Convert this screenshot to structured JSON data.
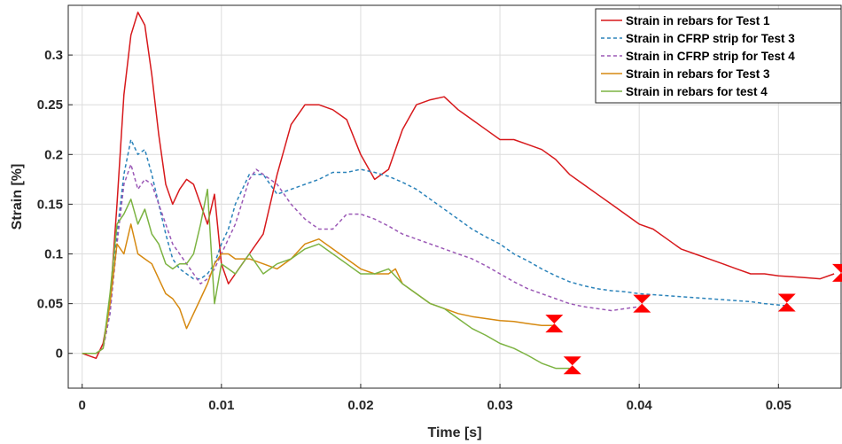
{
  "chart_data": {
    "type": "line",
    "xlabel": "Time [s]",
    "ylabel": "Strain [%]",
    "xlim": [
      -0.001,
      0.0545
    ],
    "ylim": [
      -0.035,
      0.35
    ],
    "xticks": [
      0,
      0.01,
      0.02,
      0.03,
      0.04,
      0.05
    ],
    "xtick_labels": [
      "0",
      "0.01",
      "0.02",
      "0.03",
      "0.04",
      "0.05"
    ],
    "yticks": [
      0,
      0.05,
      0.1,
      0.15,
      0.2,
      0.25,
      0.3
    ],
    "ytick_labels": [
      "0",
      "0.05",
      "0.1",
      "0.15",
      "0.2",
      "0.25",
      "0.3"
    ],
    "grid": true,
    "legend_position": "top-right",
    "series": [
      {
        "name": "Strain in rebars for Test 1",
        "color": "#d7191c",
        "style": "solid",
        "points": [
          [
            0,
            0
          ],
          [
            0.001,
            -0.005
          ],
          [
            0.0015,
            0.01
          ],
          [
            0.002,
            0.05
          ],
          [
            0.0025,
            0.15
          ],
          [
            0.003,
            0.26
          ],
          [
            0.0035,
            0.32
          ],
          [
            0.004,
            0.343
          ],
          [
            0.0045,
            0.33
          ],
          [
            0.005,
            0.28
          ],
          [
            0.0055,
            0.22
          ],
          [
            0.006,
            0.17
          ],
          [
            0.0065,
            0.15
          ],
          [
            0.007,
            0.165
          ],
          [
            0.0075,
            0.175
          ],
          [
            0.008,
            0.17
          ],
          [
            0.0085,
            0.15
          ],
          [
            0.009,
            0.13
          ],
          [
            0.0095,
            0.16
          ],
          [
            0.01,
            0.09
          ],
          [
            0.0105,
            0.07
          ],
          [
            0.011,
            0.08
          ],
          [
            0.0115,
            0.09
          ],
          [
            0.012,
            0.1
          ],
          [
            0.013,
            0.12
          ],
          [
            0.014,
            0.18
          ],
          [
            0.015,
            0.23
          ],
          [
            0.016,
            0.25
          ],
          [
            0.017,
            0.25
          ],
          [
            0.018,
            0.245
          ],
          [
            0.019,
            0.235
          ],
          [
            0.02,
            0.2
          ],
          [
            0.021,
            0.175
          ],
          [
            0.022,
            0.185
          ],
          [
            0.023,
            0.225
          ],
          [
            0.024,
            0.25
          ],
          [
            0.025,
            0.255
          ],
          [
            0.026,
            0.258
          ],
          [
            0.027,
            0.245
          ],
          [
            0.028,
            0.235
          ],
          [
            0.029,
            0.225
          ],
          [
            0.03,
            0.215
          ],
          [
            0.031,
            0.215
          ],
          [
            0.032,
            0.21
          ],
          [
            0.033,
            0.205
          ],
          [
            0.034,
            0.195
          ],
          [
            0.035,
            0.18
          ],
          [
            0.036,
            0.17
          ],
          [
            0.037,
            0.16
          ],
          [
            0.038,
            0.15
          ],
          [
            0.039,
            0.14
          ],
          [
            0.04,
            0.13
          ],
          [
            0.041,
            0.125
          ],
          [
            0.042,
            0.115
          ],
          [
            0.043,
            0.105
          ],
          [
            0.044,
            0.1
          ],
          [
            0.045,
            0.095
          ],
          [
            0.046,
            0.09
          ],
          [
            0.047,
            0.085
          ],
          [
            0.048,
            0.08
          ],
          [
            0.049,
            0.08
          ],
          [
            0.05,
            0.078
          ],
          [
            0.051,
            0.077
          ],
          [
            0.052,
            0.076
          ],
          [
            0.053,
            0.075
          ],
          [
            0.054,
            0.08
          ]
        ]
      },
      {
        "name": "Strain in CFRP strip for Test 3",
        "color": "#2b83ba",
        "style": "dashed",
        "points": [
          [
            0,
            0
          ],
          [
            0.001,
            0
          ],
          [
            0.0015,
            0.005
          ],
          [
            0.002,
            0.04
          ],
          [
            0.0025,
            0.12
          ],
          [
            0.003,
            0.18
          ],
          [
            0.0035,
            0.215
          ],
          [
            0.004,
            0.2
          ],
          [
            0.0045,
            0.205
          ],
          [
            0.005,
            0.18
          ],
          [
            0.0055,
            0.15
          ],
          [
            0.006,
            0.12
          ],
          [
            0.0065,
            0.095
          ],
          [
            0.007,
            0.085
          ],
          [
            0.0075,
            0.08
          ],
          [
            0.008,
            0.075
          ],
          [
            0.0085,
            0.075
          ],
          [
            0.009,
            0.08
          ],
          [
            0.0095,
            0.09
          ],
          [
            0.01,
            0.11
          ],
          [
            0.0105,
            0.125
          ],
          [
            0.011,
            0.15
          ],
          [
            0.0115,
            0.165
          ],
          [
            0.012,
            0.18
          ],
          [
            0.013,
            0.18
          ],
          [
            0.0135,
            0.17
          ],
          [
            0.014,
            0.16
          ],
          [
            0.015,
            0.165
          ],
          [
            0.016,
            0.17
          ],
          [
            0.017,
            0.175
          ],
          [
            0.018,
            0.182
          ],
          [
            0.019,
            0.182
          ],
          [
            0.02,
            0.185
          ],
          [
            0.021,
            0.182
          ],
          [
            0.022,
            0.178
          ],
          [
            0.023,
            0.172
          ],
          [
            0.024,
            0.165
          ],
          [
            0.025,
            0.155
          ],
          [
            0.026,
            0.145
          ],
          [
            0.027,
            0.135
          ],
          [
            0.028,
            0.125
          ],
          [
            0.029,
            0.117
          ],
          [
            0.03,
            0.11
          ],
          [
            0.031,
            0.1
          ],
          [
            0.032,
            0.093
          ],
          [
            0.033,
            0.085
          ],
          [
            0.034,
            0.078
          ],
          [
            0.035,
            0.072
          ],
          [
            0.036,
            0.068
          ],
          [
            0.037,
            0.065
          ],
          [
            0.038,
            0.063
          ],
          [
            0.039,
            0.062
          ],
          [
            0.04,
            0.06
          ],
          [
            0.041,
            0.059
          ],
          [
            0.042,
            0.058
          ],
          [
            0.043,
            0.057
          ],
          [
            0.044,
            0.056
          ],
          [
            0.045,
            0.055
          ],
          [
            0.046,
            0.054
          ],
          [
            0.047,
            0.053
          ],
          [
            0.048,
            0.052
          ],
          [
            0.049,
            0.05
          ],
          [
            0.0505,
            0.048
          ]
        ]
      },
      {
        "name": "Strain in CFRP strip for Test 4",
        "color": "#9b59b6",
        "style": "dashed",
        "points": [
          [
            0,
            0
          ],
          [
            0.001,
            0
          ],
          [
            0.0015,
            0.005
          ],
          [
            0.002,
            0.04
          ],
          [
            0.0025,
            0.11
          ],
          [
            0.003,
            0.17
          ],
          [
            0.0035,
            0.19
          ],
          [
            0.004,
            0.165
          ],
          [
            0.0045,
            0.175
          ],
          [
            0.005,
            0.17
          ],
          [
            0.0055,
            0.15
          ],
          [
            0.006,
            0.13
          ],
          [
            0.0065,
            0.11
          ],
          [
            0.007,
            0.1
          ],
          [
            0.0075,
            0.09
          ],
          [
            0.008,
            0.08
          ],
          [
            0.0085,
            0.07
          ],
          [
            0.009,
            0.075
          ],
          [
            0.0095,
            0.085
          ],
          [
            0.01,
            0.1
          ],
          [
            0.011,
            0.13
          ],
          [
            0.012,
            0.175
          ],
          [
            0.0125,
            0.185
          ],
          [
            0.013,
            0.18
          ],
          [
            0.014,
            0.17
          ],
          [
            0.015,
            0.15
          ],
          [
            0.016,
            0.135
          ],
          [
            0.017,
            0.125
          ],
          [
            0.018,
            0.125
          ],
          [
            0.019,
            0.14
          ],
          [
            0.02,
            0.14
          ],
          [
            0.021,
            0.135
          ],
          [
            0.022,
            0.128
          ],
          [
            0.023,
            0.12
          ],
          [
            0.024,
            0.115
          ],
          [
            0.025,
            0.11
          ],
          [
            0.026,
            0.105
          ],
          [
            0.027,
            0.1
          ],
          [
            0.028,
            0.095
          ],
          [
            0.029,
            0.088
          ],
          [
            0.03,
            0.08
          ],
          [
            0.031,
            0.072
          ],
          [
            0.032,
            0.065
          ],
          [
            0.033,
            0.06
          ],
          [
            0.034,
            0.055
          ],
          [
            0.035,
            0.05
          ],
          [
            0.036,
            0.047
          ],
          [
            0.037,
            0.045
          ],
          [
            0.038,
            0.043
          ],
          [
            0.039,
            0.045
          ],
          [
            0.04,
            0.047
          ]
        ]
      },
      {
        "name": "Strain in rebars for Test 3",
        "color": "#d68910",
        "style": "solid",
        "points": [
          [
            0,
            0
          ],
          [
            0.001,
            0
          ],
          [
            0.0015,
            0.005
          ],
          [
            0.002,
            0.05
          ],
          [
            0.0025,
            0.11
          ],
          [
            0.003,
            0.1
          ],
          [
            0.0035,
            0.13
          ],
          [
            0.004,
            0.1
          ],
          [
            0.0045,
            0.095
          ],
          [
            0.005,
            0.09
          ],
          [
            0.0055,
            0.075
          ],
          [
            0.006,
            0.06
          ],
          [
            0.0065,
            0.055
          ],
          [
            0.007,
            0.045
          ],
          [
            0.0075,
            0.025
          ],
          [
            0.008,
            0.04
          ],
          [
            0.0085,
            0.055
          ],
          [
            0.009,
            0.07
          ],
          [
            0.0095,
            0.09
          ],
          [
            0.01,
            0.1
          ],
          [
            0.0105,
            0.1
          ],
          [
            0.011,
            0.095
          ],
          [
            0.012,
            0.095
          ],
          [
            0.013,
            0.09
          ],
          [
            0.014,
            0.085
          ],
          [
            0.015,
            0.095
          ],
          [
            0.016,
            0.11
          ],
          [
            0.017,
            0.115
          ],
          [
            0.018,
            0.105
          ],
          [
            0.019,
            0.095
          ],
          [
            0.02,
            0.085
          ],
          [
            0.021,
            0.08
          ],
          [
            0.022,
            0.08
          ],
          [
            0.0225,
            0.085
          ],
          [
            0.023,
            0.07
          ],
          [
            0.024,
            0.06
          ],
          [
            0.025,
            0.05
          ],
          [
            0.026,
            0.045
          ],
          [
            0.027,
            0.04
          ],
          [
            0.028,
            0.037
          ],
          [
            0.029,
            0.035
          ],
          [
            0.03,
            0.033
          ],
          [
            0.031,
            0.032
          ],
          [
            0.032,
            0.03
          ],
          [
            0.033,
            0.028
          ],
          [
            0.034,
            0.028
          ]
        ]
      },
      {
        "name": "Strain in rebars for test 4",
        "color": "#7cb342",
        "style": "solid",
        "points": [
          [
            0,
            0
          ],
          [
            0.001,
            0
          ],
          [
            0.0015,
            0.005
          ],
          [
            0.002,
            0.06
          ],
          [
            0.0025,
            0.13
          ],
          [
            0.003,
            0.14
          ],
          [
            0.0035,
            0.155
          ],
          [
            0.004,
            0.13
          ],
          [
            0.0045,
            0.145
          ],
          [
            0.005,
            0.12
          ],
          [
            0.0055,
            0.11
          ],
          [
            0.006,
            0.09
          ],
          [
            0.0065,
            0.085
          ],
          [
            0.007,
            0.09
          ],
          [
            0.0075,
            0.09
          ],
          [
            0.008,
            0.1
          ],
          [
            0.0085,
            0.13
          ],
          [
            0.009,
            0.165
          ],
          [
            0.0095,
            0.05
          ],
          [
            0.01,
            0.09
          ],
          [
            0.011,
            0.08
          ],
          [
            0.012,
            0.1
          ],
          [
            0.013,
            0.08
          ],
          [
            0.014,
            0.09
          ],
          [
            0.015,
            0.095
          ],
          [
            0.016,
            0.105
          ],
          [
            0.017,
            0.11
          ],
          [
            0.018,
            0.1
          ],
          [
            0.019,
            0.09
          ],
          [
            0.02,
            0.08
          ],
          [
            0.021,
            0.08
          ],
          [
            0.022,
            0.085
          ],
          [
            0.023,
            0.07
          ],
          [
            0.024,
            0.06
          ],
          [
            0.025,
            0.05
          ],
          [
            0.026,
            0.045
          ],
          [
            0.027,
            0.035
          ],
          [
            0.028,
            0.025
          ],
          [
            0.029,
            0.018
          ],
          [
            0.03,
            0.01
          ],
          [
            0.031,
            0.005
          ],
          [
            0.032,
            -0.002
          ],
          [
            0.033,
            -0.01
          ],
          [
            0.034,
            -0.015
          ],
          [
            0.035,
            -0.015
          ]
        ]
      }
    ],
    "failure_markers": [
      {
        "x": 0.0339,
        "y": 0.03
      },
      {
        "x": 0.0352,
        "y": -0.012
      },
      {
        "x": 0.0402,
        "y": 0.05
      },
      {
        "x": 0.0506,
        "y": 0.051
      },
      {
        "x": 0.0545,
        "y": 0.081
      }
    ],
    "marker_color": "#ff0000"
  }
}
